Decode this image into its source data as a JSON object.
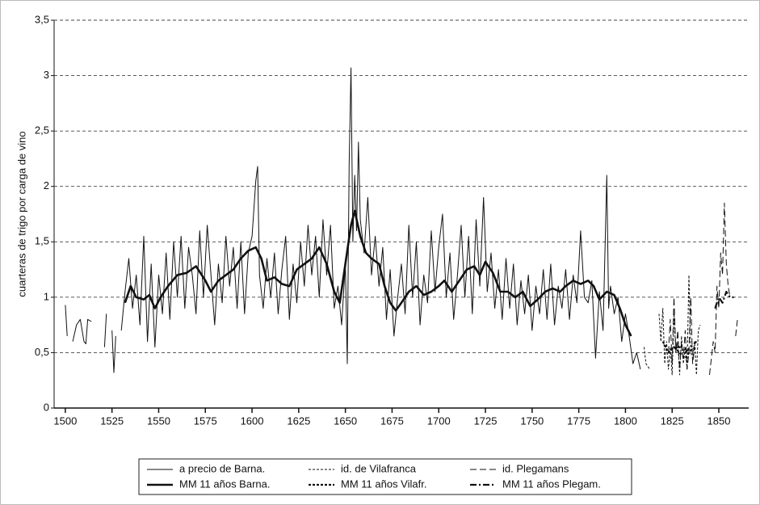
{
  "chart_data": {
    "type": "line",
    "y_label": "cuarteras de trigo por carga de vino",
    "xlim": [
      1494,
      1866
    ],
    "xticks": [
      1500,
      1525,
      1550,
      1575,
      1600,
      1625,
      1650,
      1675,
      1700,
      1725,
      1750,
      1775,
      1800,
      1825,
      1850
    ],
    "ylim": [
      0,
      3.5
    ],
    "yticks": [
      0,
      {
        "value": 0.5,
        "label": "0,5"
      },
      1,
      {
        "value": 1.5,
        "label": "1,5"
      },
      2,
      {
        "value": 2.5,
        "label": "2,5"
      },
      3,
      {
        "value": 3.5,
        "label": "3,5"
      }
    ],
    "grid": true,
    "legend": "bottom",
    "series": [
      {
        "name": "a precio de Barna.",
        "color": "#111111",
        "line_width": 1,
        "dash": "none",
        "x": [
          1500,
          1501,
          null,
          1504,
          1506,
          1508,
          1510,
          1511,
          1512,
          1514,
          null,
          1521,
          1522,
          null,
          1525,
          1526,
          1527,
          null,
          1530,
          1532,
          1534,
          1536,
          1538,
          1540,
          1542,
          1544,
          1546,
          1548,
          1550,
          1552,
          1554,
          1556,
          1558,
          1560,
          1562,
          1564,
          1566,
          1568,
          1570,
          1572,
          1574,
          1576,
          1578,
          1580,
          1582,
          1584,
          1586,
          1588,
          1590,
          1592,
          1594,
          1596,
          1598,
          1600,
          1602,
          1603,
          1604,
          1606,
          1608,
          1610,
          1612,
          1614,
          1616,
          1618,
          1620,
          1622,
          1624,
          1626,
          1628,
          1630,
          1632,
          1634,
          1636,
          1638,
          1640,
          1642,
          1644,
          1646,
          1648,
          1650,
          1651,
          1652,
          1653,
          1654,
          1655,
          1656,
          1657,
          1658,
          1660,
          1662,
          1664,
          1666,
          1668,
          1670,
          1672,
          1674,
          1676,
          1678,
          1680,
          1682,
          1684,
          1686,
          1688,
          1690,
          1692,
          1694,
          1696,
          1698,
          1700,
          1702,
          1704,
          1706,
          1708,
          1710,
          1712,
          1714,
          1716,
          1718,
          1720,
          1722,
          1724,
          1726,
          1728,
          1730,
          1732,
          1734,
          1736,
          1738,
          1740,
          1742,
          1744,
          1746,
          1748,
          1750,
          1752,
          1754,
          1756,
          1758,
          1760,
          1762,
          1764,
          1766,
          1768,
          1770,
          1772,
          1774,
          1776,
          1778,
          1780,
          1782,
          1784,
          1786,
          1788,
          1790,
          1791,
          1792,
          1794,
          1796,
          1798,
          1800,
          1802,
          1804,
          1806,
          1808
        ],
        "values": [
          0.93,
          0.65,
          null,
          0.6,
          0.75,
          0.8,
          0.6,
          0.58,
          0.8,
          0.78,
          null,
          0.55,
          0.85,
          null,
          0.7,
          0.32,
          0.65,
          null,
          0.7,
          1.05,
          1.35,
          0.9,
          1.2,
          0.75,
          1.55,
          0.6,
          1.3,
          0.55,
          1.2,
          0.85,
          1.4,
          0.8,
          1.5,
          1.0,
          1.55,
          0.9,
          1.45,
          1.2,
          0.85,
          1.6,
          1.0,
          1.65,
          1.2,
          0.75,
          1.3,
          0.95,
          1.55,
          1.1,
          1.45,
          0.9,
          1.5,
          0.85,
          1.4,
          1.55,
          2.05,
          2.18,
          1.2,
          0.9,
          1.35,
          1.0,
          1.4,
          0.85,
          1.25,
          1.55,
          0.8,
          1.3,
          0.95,
          1.5,
          1.1,
          1.65,
          1.2,
          1.55,
          1.0,
          1.7,
          1.2,
          1.65,
          0.9,
          1.1,
          0.75,
          1.3,
          0.4,
          2.2,
          3.07,
          1.5,
          2.1,
          1.6,
          2.4,
          1.7,
          1.4,
          1.9,
          1.2,
          1.55,
          1.1,
          1.45,
          0.8,
          1.25,
          0.65,
          1.0,
          1.3,
          0.85,
          1.65,
          1.0,
          1.5,
          0.75,
          1.2,
          0.95,
          1.6,
          1.05,
          1.45,
          1.75,
          1.0,
          1.4,
          0.8,
          1.2,
          1.65,
          1.0,
          1.55,
          0.85,
          1.7,
          1.1,
          1.9,
          1.05,
          1.4,
          0.9,
          1.25,
          0.8,
          1.35,
          0.9,
          1.3,
          0.75,
          1.15,
          0.85,
          1.2,
          0.7,
          1.1,
          0.85,
          1.25,
          0.8,
          1.3,
          0.75,
          1.1,
          0.9,
          1.25,
          0.8,
          1.2,
          0.95,
          1.6,
          1.0,
          0.95,
          1.15,
          0.45,
          1.05,
          0.7,
          2.1,
          0.9,
          1.1,
          0.85,
          1.0,
          0.6,
          0.85,
          0.65,
          0.4,
          0.5,
          0.35
        ]
      },
      {
        "name": "MM 11 años Barna.",
        "color": "#111111",
        "line_width": 2.6,
        "dash": "none",
        "x": [
          1532,
          1535,
          1538,
          1542,
          1545,
          1548,
          1551,
          1555,
          1560,
          1565,
          1570,
          1575,
          1578,
          1582,
          1586,
          1590,
          1594,
          1598,
          1602,
          1605,
          1608,
          1612,
          1616,
          1620,
          1624,
          1628,
          1632,
          1636,
          1640,
          1644,
          1647,
          1650,
          1653,
          1655,
          1658,
          1661,
          1664,
          1668,
          1671,
          1674,
          1677,
          1680,
          1684,
          1688,
          1692,
          1696,
          1700,
          1703,
          1707,
          1711,
          1715,
          1719,
          1722,
          1725,
          1729,
          1733,
          1737,
          1741,
          1745,
          1749,
          1753,
          1757,
          1761,
          1765,
          1768,
          1772,
          1776,
          1780,
          1783,
          1786,
          1790,
          1794,
          1797,
          1800,
          1803
        ],
        "values": [
          0.95,
          1.1,
          1.0,
          0.98,
          1.02,
          0.9,
          1.0,
          1.1,
          1.2,
          1.22,
          1.28,
          1.15,
          1.05,
          1.15,
          1.2,
          1.25,
          1.35,
          1.42,
          1.45,
          1.35,
          1.15,
          1.18,
          1.12,
          1.1,
          1.25,
          1.3,
          1.35,
          1.45,
          1.3,
          1.05,
          0.95,
          1.3,
          1.65,
          1.78,
          1.55,
          1.4,
          1.35,
          1.3,
          1.1,
          0.95,
          0.88,
          0.95,
          1.05,
          1.1,
          1.02,
          1.05,
          1.1,
          1.15,
          1.05,
          1.15,
          1.25,
          1.28,
          1.2,
          1.32,
          1.22,
          1.05,
          1.05,
          1.0,
          1.05,
          0.92,
          0.98,
          1.05,
          1.08,
          1.05,
          1.1,
          1.15,
          1.12,
          1.15,
          1.1,
          0.98,
          1.05,
          1.02,
          0.9,
          0.75,
          0.65
        ]
      },
      {
        "name": "id. de Vilafranca",
        "color": "#111111",
        "line_width": 1,
        "dash": "3,2",
        "x": [
          1810,
          1811,
          1813,
          null,
          1818,
          1819,
          1820,
          1821,
          1822,
          1823,
          1824,
          1825,
          1826,
          1827,
          1828,
          1829,
          1830,
          1831,
          1832,
          1833,
          1834,
          1835,
          1836,
          1837,
          1838,
          1839,
          1840
        ],
        "values": [
          0.55,
          0.4,
          0.35,
          null,
          0.85,
          0.6,
          0.9,
          0.4,
          0.6,
          0.35,
          0.55,
          0.3,
          0.85,
          0.5,
          0.6,
          0.3,
          0.65,
          0.4,
          0.55,
          0.35,
          1.2,
          0.5,
          0.45,
          0.6,
          0.3,
          0.7,
          0.75
        ]
      },
      {
        "name": "MM 11 años Vilafr.",
        "color": "#111111",
        "line_width": 2.2,
        "dash": "3,2",
        "x": [
          1820,
          1823,
          1826,
          1829,
          1832,
          1835,
          1838
        ],
        "values": [
          0.6,
          0.5,
          0.55,
          0.5,
          0.45,
          0.52,
          0.55
        ]
      },
      {
        "name": "id. Plegamans",
        "color": "#111111",
        "line_width": 1,
        "dash": "8,4",
        "x": [
          1823,
          1824,
          1825,
          1826,
          1827,
          1828,
          1829,
          1830,
          1831,
          1832,
          1833,
          1834,
          1835,
          1836,
          1837,
          null,
          1845,
          1846,
          1847,
          1848,
          1849,
          1850,
          1851,
          1852,
          1853,
          1854,
          1855,
          1856,
          null,
          1859,
          1860
        ],
        "values": [
          0.5,
          0.8,
          0.4,
          1.0,
          0.5,
          0.7,
          0.35,
          0.6,
          0.45,
          0.7,
          0.35,
          0.5,
          1.0,
          0.4,
          0.55,
          null,
          0.3,
          0.45,
          0.6,
          0.5,
          1.1,
          0.9,
          1.4,
          1.2,
          1.85,
          1.3,
          1.1,
          1.0,
          null,
          0.65,
          0.8
        ]
      },
      {
        "name": "MM 11 años Plegam.",
        "color": "#111111",
        "line_width": 2.2,
        "dash": "8,3,2,3",
        "x": [
          1826,
          1829,
          1832,
          1835,
          1838,
          null,
          1848,
          1850,
          1852,
          1854,
          1856,
          1858
        ],
        "values": [
          0.55,
          0.55,
          0.5,
          0.55,
          0.6,
          null,
          0.9,
          1.0,
          0.95,
          1.05,
          1.0,
          1.0
        ]
      }
    ]
  }
}
